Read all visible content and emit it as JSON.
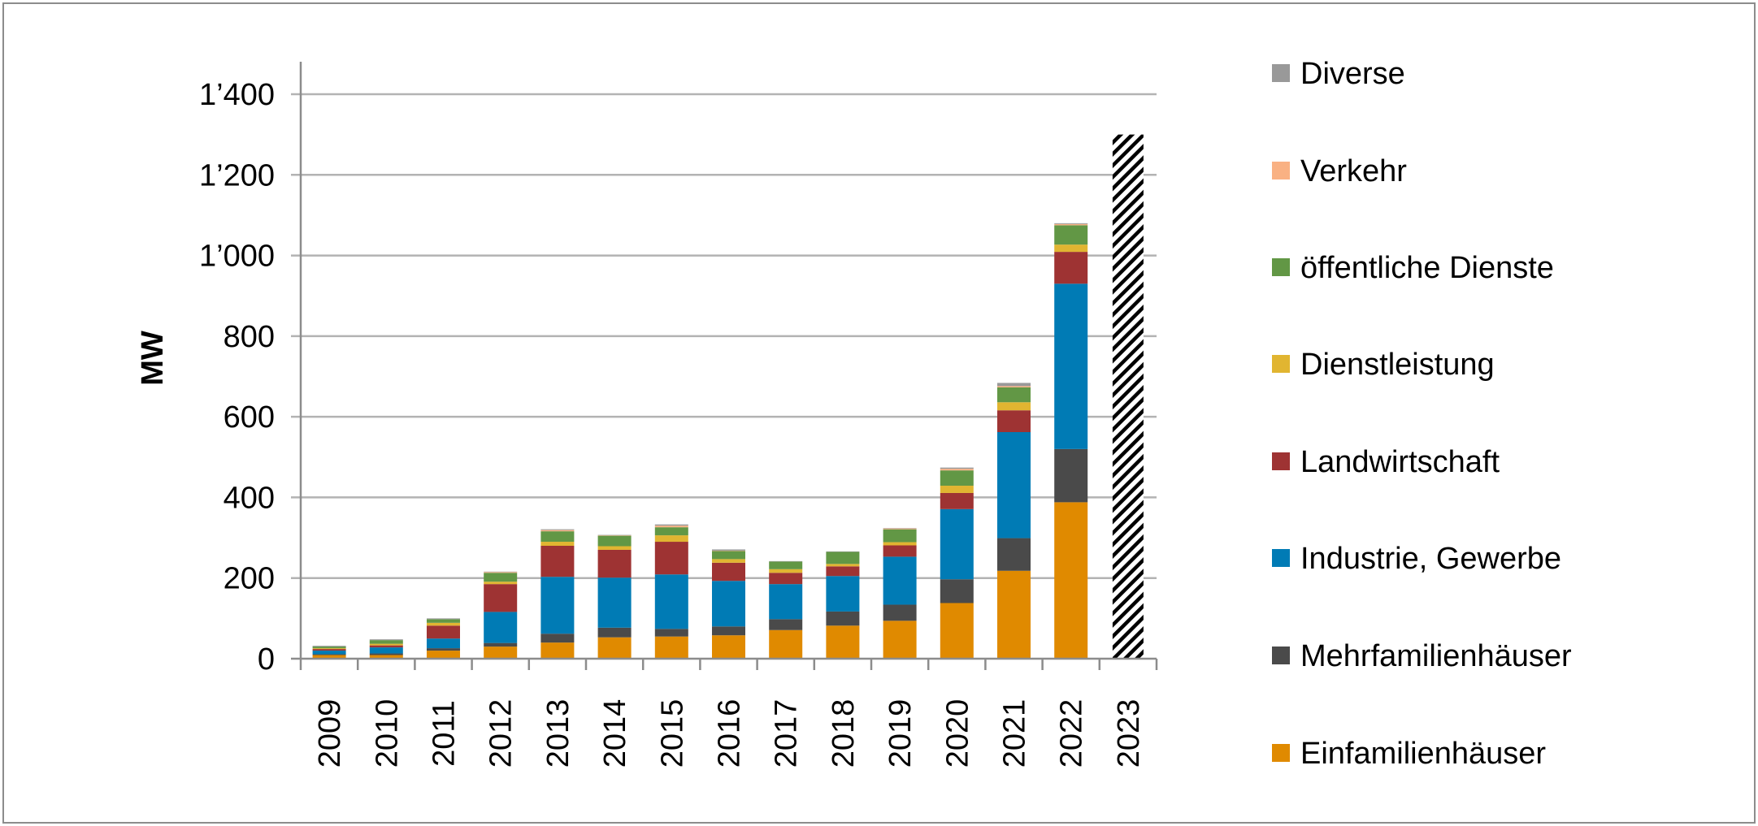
{
  "chart_data": {
    "type": "bar",
    "stacked": true,
    "title": "",
    "xlabel": "",
    "ylabel": "MW",
    "ylim": [
      0,
      1400
    ],
    "yticks": [
      0,
      200,
      400,
      600,
      800,
      1000,
      1200,
      1400
    ],
    "ytick_labels": [
      "0",
      "200",
      "400",
      "600",
      "800",
      "1’000",
      "1’200",
      "1’400"
    ],
    "grid": true,
    "legend_position": "right",
    "categories": [
      "2009",
      "2010",
      "2011",
      "2012",
      "2013",
      "2014",
      "2015",
      "2016",
      "2017",
      "2018",
      "2019",
      "2020",
      "2021",
      "2022",
      "2023"
    ],
    "series": [
      {
        "name": "Einfamilienhäuser",
        "color": "#E08A00",
        "values": [
          9,
          9,
          20,
          30,
          40,
          53,
          55,
          58,
          71,
          82,
          94,
          138,
          218,
          388,
          null
        ]
      },
      {
        "name": "Mehrfamilienhäuser",
        "color": "#4A4A4A",
        "values": [
          2,
          4,
          6,
          9,
          22,
          24,
          19,
          22,
          27,
          35,
          40,
          59,
          81,
          132,
          null
        ]
      },
      {
        "name": "Industrie, Gewerbe",
        "color": "#007BB5",
        "values": [
          9,
          15,
          24,
          77,
          141,
          124,
          135,
          113,
          87,
          88,
          119,
          174,
          263,
          410,
          null
        ]
      },
      {
        "name": "Landwirtschaft",
        "color": "#9E3333",
        "values": [
          4,
          5,
          32,
          69,
          77,
          69,
          81,
          45,
          28,
          24,
          28,
          40,
          54,
          79,
          null
        ]
      },
      {
        "name": "Dienstleistung",
        "color": "#E1B531",
        "values": [
          2,
          4,
          7,
          6,
          10,
          9,
          16,
          9,
          9,
          6,
          8,
          18,
          20,
          18,
          null
        ]
      },
      {
        "name": "öffentliche Dienste",
        "color": "#629745",
        "values": [
          4,
          9,
          9,
          22,
          26,
          26,
          20,
          20,
          19,
          30,
          32,
          38,
          37,
          48,
          null
        ]
      },
      {
        "name": "Verkehr",
        "color": "#F9B183",
        "values": [
          0,
          0,
          0,
          2,
          3,
          1,
          4,
          1,
          0,
          0,
          2,
          4,
          3,
          3,
          null
        ]
      },
      {
        "name": "Diverse",
        "color": "#999999",
        "values": [
          2,
          2,
          2,
          1,
          2,
          1,
          3,
          3,
          1,
          1,
          1,
          3,
          8,
          2,
          null
        ]
      }
    ],
    "forecast": {
      "category": "2023",
      "value": 1300,
      "pattern": "hatched"
    },
    "legend_order": [
      "Diverse",
      "Verkehr",
      "öffentliche Dienste",
      "Dienstleistung",
      "Landwirtschaft",
      "Industrie, Gewerbe",
      "Mehrfamilienhäuser",
      "Einfamilienhäuser"
    ]
  }
}
